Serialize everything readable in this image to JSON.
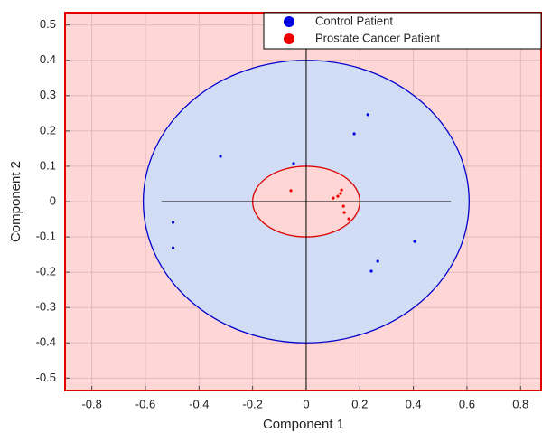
{
  "chart_data": {
    "type": "scatter",
    "xlabel": "Component 1",
    "ylabel": "Component 2",
    "xlim": [
      -0.9,
      0.88
    ],
    "ylim": [
      -0.535,
      0.535
    ],
    "xticks": [
      -0.8,
      -0.6,
      -0.4,
      -0.2,
      0,
      0.2,
      0.4,
      0.6,
      0.8
    ],
    "yticks": [
      -0.5,
      -0.4,
      -0.3,
      -0.2,
      -0.1,
      0,
      0.1,
      0.2,
      0.3,
      0.4,
      0.5
    ],
    "grid": true,
    "legend": "top-right",
    "background": "#ffd6d6",
    "series": [
      {
        "name": "Control Patient",
        "color": "#0000e0",
        "x": [
          -0.32,
          -0.497,
          -0.497,
          -0.047,
          0.179,
          0.23,
          0.405,
          0.267,
          0.243
        ],
        "values": [
          0.128,
          -0.059,
          -0.131,
          0.108,
          0.192,
          0.246,
          -0.113,
          -0.169,
          -0.197
        ]
      },
      {
        "name": "Prostate Cancer Patient",
        "color": "#ee0000",
        "x": [
          -0.057,
          0.132,
          0.128,
          0.118,
          0.101,
          0.139,
          0.142,
          0.159
        ],
        "values": [
          0.031,
          0.033,
          0.023,
          0.015,
          0.01,
          -0.013,
          -0.031,
          -0.049
        ]
      }
    ],
    "ellipses": [
      {
        "cx": 0,
        "cy": 0,
        "rx": 0.608,
        "ry": 0.4,
        "color": "#0000cc",
        "fill": "#d0ddf5"
      },
      {
        "cx": 0,
        "cy": 0,
        "rx": 0.2,
        "ry": 0.1,
        "color": "#dd0000",
        "fill": "#ffd6d6"
      }
    ],
    "zero_line_x": [
      -0.54,
      0.54
    ]
  }
}
